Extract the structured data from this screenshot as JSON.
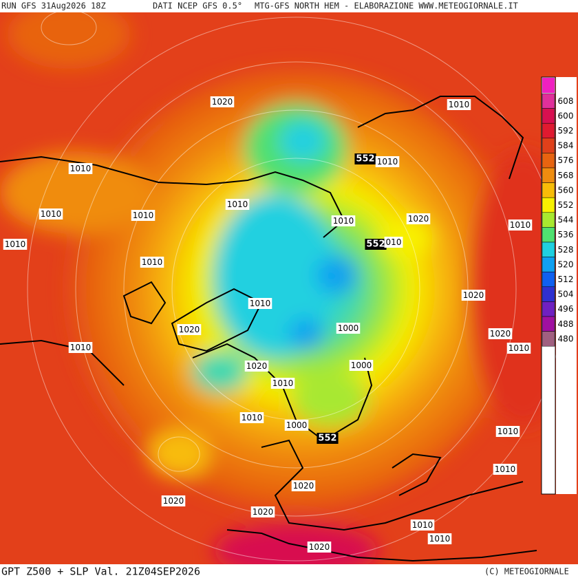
{
  "header": {
    "run": "RUN GFS 31Aug2026 18Z",
    "source": "DATI NCEP GFS 0.5°",
    "product": "MTG-GFS NORTH HEM - ELABORAZIONE WWW.METEOGIORNALE.IT"
  },
  "footer": {
    "title": "GPT Z500 + SLP Val. 21Z04SEP2026",
    "copyright": "(C) METEOGIORNALE"
  },
  "legend": {
    "items": [
      {
        "value": 608,
        "color": "#e0309a"
      },
      {
        "value": 600,
        "color": "#d81050"
      },
      {
        "value": 592,
        "color": "#e01a30"
      },
      {
        "value": 584,
        "color": "#e0401a"
      },
      {
        "value": 576,
        "color": "#e86410"
      },
      {
        "value": 568,
        "color": "#f08c10"
      },
      {
        "value": 560,
        "color": "#f8bc08"
      },
      {
        "value": 552,
        "color": "#f8f000"
      },
      {
        "value": 544,
        "color": "#a8e830"
      },
      {
        "value": 536,
        "color": "#50e070"
      },
      {
        "value": 528,
        "color": "#20d0e0"
      },
      {
        "value": 520,
        "color": "#10a0f0"
      },
      {
        "value": 512,
        "color": "#1060f0"
      },
      {
        "value": 504,
        "color": "#3030d0"
      },
      {
        "value": 496,
        "color": "#7020c0"
      },
      {
        "value": 488,
        "color": "#a010a0"
      },
      {
        "value": 480,
        "color": "#a06080"
      }
    ]
  },
  "contour_labels": [
    "1020",
    "1010",
    "552",
    "1010",
    "1010",
    "1010",
    "1010",
    "1010",
    "1010",
    "1020",
    "1010",
    "552",
    "010",
    "1010",
    "1010",
    "1010",
    "1020",
    "1020",
    "1000",
    "1020",
    "1010",
    "1010",
    "1020",
    "1000",
    "1010",
    "1010",
    "1000",
    "552",
    "1010",
    "1010",
    "1020",
    "1020",
    "1020",
    "1010",
    "1010",
    "1020"
  ]
}
